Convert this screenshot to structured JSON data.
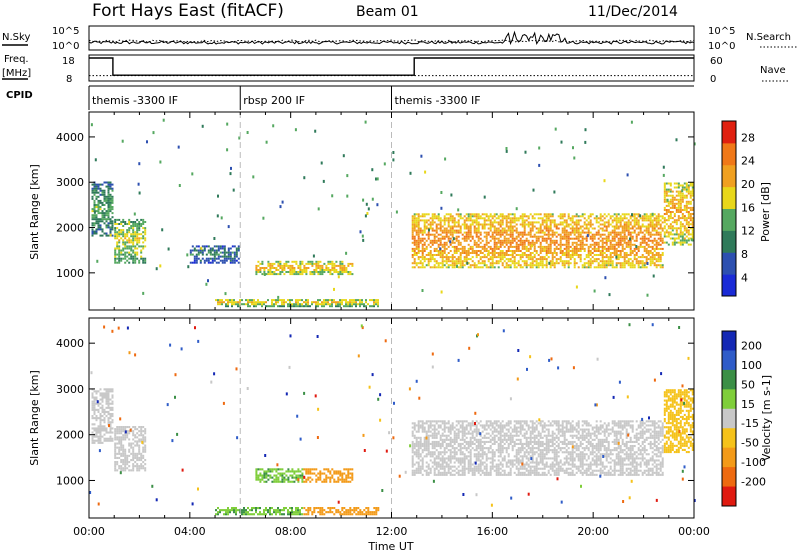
{
  "header": {
    "station": "Fort Hays East (fitACF)",
    "beam": "Beam 01",
    "date": "11/Dec/2014"
  },
  "summary_panels": {
    "nsky_label": "N.Sky",
    "nsky_ticks": [
      "10^5",
      "10^0"
    ],
    "nsearch_label": "N.Search",
    "nsearch_ticks": [
      "10^5",
      "10^0"
    ],
    "freq_label": "Freq.",
    "freq_unit": "[MHz]",
    "freq_ticks": [
      "18",
      "8"
    ],
    "nave_label": "Nave",
    "nave_ticks": [
      "60",
      "0"
    ],
    "cpid_label": "CPID",
    "freq_trace_mhz": [
      {
        "t": 0.0,
        "v": 18
      },
      {
        "t": 0.95,
        "v": 18
      },
      {
        "t": 0.95,
        "v": 10.2
      },
      {
        "t": 12.9,
        "v": 10.2
      },
      {
        "t": 12.9,
        "v": 18
      },
      {
        "t": 24.0,
        "v": 18
      }
    ],
    "nave_trace": 12
  },
  "cpid_segments": [
    {
      "start": 0.0,
      "end": 6.0,
      "label": "themis -3300 IF"
    },
    {
      "start": 6.0,
      "end": 12.0,
      "label": "rbsp 200 IF"
    },
    {
      "start": 12.0,
      "end": 24.0,
      "label": "themis -3300 IF"
    }
  ],
  "chart_data": [
    {
      "type": "heatmap",
      "name": "power",
      "xlabel": "",
      "ylabel": "Slant Range [km]",
      "xlim": [
        0,
        24
      ],
      "ylim": [
        180,
        4550
      ],
      "yticks": [
        1000,
        2000,
        3000,
        4000
      ],
      "colorbar_label": "Power [dB]",
      "colorbar_ticks": [
        "28",
        "24",
        "20",
        "16",
        "12",
        "8",
        "4"
      ],
      "colorbar_range": [
        0,
        30
      ],
      "regions": [
        {
          "t0": 0.1,
          "t1": 1.0,
          "r0": 1800,
          "r1": 3000,
          "value": 10
        },
        {
          "t0": 1.0,
          "t1": 2.3,
          "r0": 1200,
          "r1": 2200,
          "value": 14
        },
        {
          "t0": 6.6,
          "t1": 10.5,
          "r0": 950,
          "r1": 1250,
          "value": 17
        },
        {
          "t0": 5.0,
          "t1": 11.5,
          "r0": 240,
          "r1": 420,
          "value": 15
        },
        {
          "t0": 12.8,
          "t1": 22.8,
          "r0": 1100,
          "r1": 2300,
          "value": 20
        },
        {
          "t0": 22.8,
          "t1": 24.0,
          "r0": 1600,
          "r1": 3000,
          "value": 18
        },
        {
          "t0": 4.0,
          "t1": 6.0,
          "r0": 1200,
          "r1": 1600,
          "value": 7
        }
      ]
    },
    {
      "type": "heatmap",
      "name": "velocity",
      "xlabel": "Time UT",
      "ylabel": "Slant Range [km]",
      "xlim": [
        0,
        24
      ],
      "ylim": [
        180,
        4550
      ],
      "yticks": [
        1000,
        2000,
        3000,
        4000
      ],
      "colorbar_label": "Velocity [m s-1]",
      "colorbar_ticks": [
        "200",
        "100",
        "50",
        "15",
        "-15",
        "-50",
        "-100",
        "-200"
      ],
      "colorbar_range": [
        -250,
        250
      ],
      "regions": [
        {
          "t0": 0.1,
          "t1": 1.0,
          "r0": 1800,
          "r1": 3000,
          "value": 0
        },
        {
          "t0": 1.0,
          "t1": 2.3,
          "r0": 1200,
          "r1": 2200,
          "value": 0
        },
        {
          "t0": 6.6,
          "t1": 8.5,
          "r0": 950,
          "r1": 1250,
          "value": 30
        },
        {
          "t0": 8.5,
          "t1": 10.5,
          "r0": 950,
          "r1": 1250,
          "value": -40
        },
        {
          "t0": 5.0,
          "t1": 8.5,
          "r0": 240,
          "r1": 420,
          "value": 30
        },
        {
          "t0": 8.5,
          "t1": 11.5,
          "r0": 240,
          "r1": 420,
          "value": -40
        },
        {
          "t0": 12.8,
          "t1": 22.8,
          "r0": 1100,
          "r1": 2300,
          "value": 0
        },
        {
          "t0": 22.8,
          "t1": 24.0,
          "r0": 1600,
          "r1": 3000,
          "value": -20
        }
      ]
    }
  ],
  "xaxis": {
    "ticks": [
      "00:00",
      "04:00",
      "08:00",
      "12:00",
      "16:00",
      "20:00",
      "00:00"
    ],
    "label": "Time UT"
  },
  "colors": {
    "power": [
      "#1a2bd6",
      "#2d50b0",
      "#2f7a5a",
      "#55a860",
      "#e8d71a",
      "#f0a020",
      "#f07818",
      "#e02010"
    ],
    "velocity": {
      "v200": "#1428b4",
      "v100": "#2f5cc8",
      "v50": "#3b8f46",
      "v15": "#7fce3a",
      "v0": "#c8c8c8",
      "vm15": "#f5c21a",
      "vm50": "#f39a18",
      "vm100": "#ee6a10",
      "vm200": "#e01a10"
    }
  }
}
